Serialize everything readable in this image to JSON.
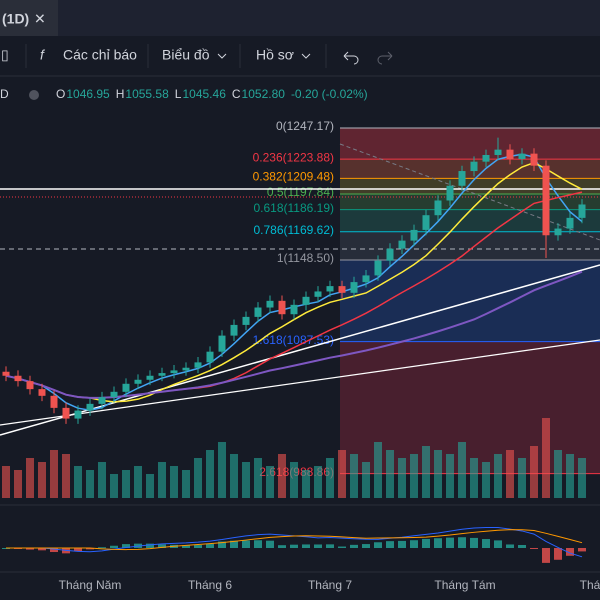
{
  "header": {
    "title": "(1D)",
    "close_icon": "✕"
  },
  "toolbar": {
    "indicators": "Các chỉ báo",
    "chart": "Biểu đồ",
    "profile": "Hồ sơ"
  },
  "legend": {
    "symbol": "D",
    "ohlc": [
      {
        "label": "O",
        "value": "1046.95"
      },
      {
        "label": "H",
        "value": "1055.58"
      },
      {
        "label": "L",
        "value": "1045.46"
      },
      {
        "label": "C",
        "value": "1052.80"
      }
    ],
    "change": "-0.20 (-0.02%)"
  },
  "fib": [
    {
      "label": "0(1247.17)",
      "price": 1247.17,
      "color": "#b2b5be",
      "zone": "#7a2a36"
    },
    {
      "label": "0.236(1223.88)",
      "price": 1223.88,
      "color": "#f23645",
      "zone": "#6e3a30"
    },
    {
      "label": "0.382(1209.48)",
      "price": 1209.48,
      "color": "#ff9800",
      "zone": "#4f4a2a"
    },
    {
      "label": "0.5(1197.84)",
      "price": 1197.84,
      "color": "#4caf50",
      "zone": "#2c4a34"
    },
    {
      "label": "0.618(1186.19)",
      "price": 1186.19,
      "color": "#089981",
      "zone": "#1f4544"
    },
    {
      "label": "0.786(1169.62)",
      "price": 1169.62,
      "color": "#00bcd4",
      "zone": "#2e3440"
    },
    {
      "label": "1(1148.50)",
      "price": 1148.5,
      "color": "#9598a1",
      "zone": "#1c3466"
    },
    {
      "label": "1.618(1087.53)",
      "price": 1087.53,
      "color": "#2962ff",
      "zone": "#5a2232"
    },
    {
      "label": "2.618(988.86)",
      "price": 988.86,
      "color": "#f23645",
      "zone": null
    }
  ],
  "candles": [
    [
      1065,
      1069,
      1058,
      1062
    ],
    [
      1062,
      1066,
      1054,
      1058
    ],
    [
      1058,
      1062,
      1048,
      1052
    ],
    [
      1052,
      1056,
      1043,
      1047
    ],
    [
      1047,
      1051,
      1034,
      1038
    ],
    [
      1038,
      1042,
      1026,
      1030
    ],
    [
      1030,
      1040,
      1026,
      1036
    ],
    [
      1036,
      1045,
      1032,
      1041
    ],
    [
      1041,
      1050,
      1037,
      1046
    ],
    [
      1046,
      1054,
      1042,
      1050
    ],
    [
      1050,
      1060,
      1046,
      1056
    ],
    [
      1056,
      1063,
      1052,
      1059
    ],
    [
      1059,
      1066,
      1055,
      1062
    ],
    [
      1062,
      1068,
      1058,
      1064
    ],
    [
      1064,
      1070,
      1060,
      1066
    ],
    [
      1066,
      1072,
      1062,
      1068
    ],
    [
      1068,
      1076,
      1064,
      1072
    ],
    [
      1072,
      1084,
      1068,
      1080
    ],
    [
      1080,
      1096,
      1076,
      1092
    ],
    [
      1092,
      1104,
      1088,
      1100
    ],
    [
      1100,
      1110,
      1096,
      1106
    ],
    [
      1106,
      1117,
      1102,
      1113
    ],
    [
      1113,
      1122,
      1109,
      1118
    ],
    [
      1118,
      1122,
      1104,
      1108
    ],
    [
      1108,
      1119,
      1104,
      1115
    ],
    [
      1115,
      1125,
      1111,
      1121
    ],
    [
      1121,
      1129,
      1117,
      1125
    ],
    [
      1125,
      1133,
      1121,
      1129
    ],
    [
      1129,
      1133,
      1120,
      1124
    ],
    [
      1124,
      1136,
      1120,
      1132
    ],
    [
      1132,
      1141,
      1128,
      1137
    ],
    [
      1137,
      1152,
      1133,
      1148
    ],
    [
      1148,
      1161,
      1144,
      1157
    ],
    [
      1157,
      1167,
      1153,
      1163
    ],
    [
      1163,
      1175,
      1159,
      1171
    ],
    [
      1171,
      1186,
      1167,
      1182
    ],
    [
      1182,
      1197,
      1178,
      1193
    ],
    [
      1193,
      1208,
      1189,
      1204
    ],
    [
      1204,
      1219,
      1200,
      1215
    ],
    [
      1215,
      1226,
      1211,
      1222
    ],
    [
      1222,
      1231,
      1218,
      1227
    ],
    [
      1227,
      1240,
      1223,
      1231
    ],
    [
      1231,
      1235,
      1220,
      1224
    ],
    [
      1224,
      1232,
      1220,
      1228
    ],
    [
      1228,
      1232,
      1215,
      1219
    ],
    [
      1219,
      1223,
      1150,
      1167
    ],
    [
      1167,
      1176,
      1163,
      1172
    ],
    [
      1172,
      1184,
      1168,
      1180
    ],
    [
      1180,
      1194,
      1176,
      1190
    ]
  ],
  "volume": [
    40,
    35,
    50,
    45,
    60,
    55,
    40,
    35,
    45,
    30,
    35,
    40,
    30,
    45,
    40,
    35,
    50,
    60,
    70,
    55,
    45,
    50,
    40,
    55,
    45,
    35,
    40,
    50,
    60,
    55,
    45,
    70,
    60,
    50,
    55,
    65,
    60,
    55,
    70,
    50,
    45,
    55,
    60,
    50,
    65,
    100,
    60,
    55,
    50
  ],
  "x_labels": [
    {
      "text": "Tháng Năm",
      "x": 0
    },
    {
      "text": "Tháng 6",
      "x": 1
    },
    {
      "text": "Tháng 7",
      "x": 2
    },
    {
      "text": "Tháng Tám",
      "x": 3
    },
    {
      "text": "Thá",
      "x": 4
    }
  ]
}
